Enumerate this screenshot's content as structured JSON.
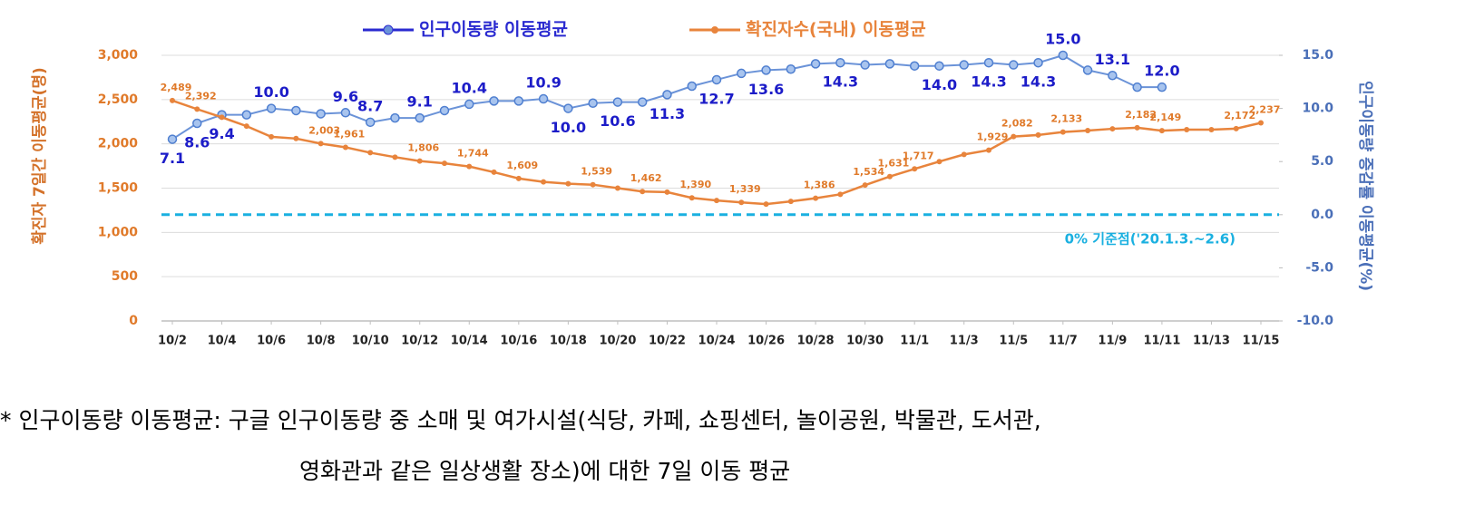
{
  "chart_data": {
    "type": "line",
    "legend": "top",
    "grid": true,
    "categories": [
      "10/2",
      null,
      "10/4",
      null,
      "10/6",
      null,
      "10/8",
      null,
      "10/10",
      null,
      "10/12",
      null,
      "10/14",
      null,
      "10/16",
      null,
      "10/18",
      null,
      "10/20",
      null,
      "10/22",
      null,
      "10/24",
      null,
      "10/26",
      null,
      "10/28",
      null,
      "10/30",
      null,
      "11/1",
      null,
      "11/3",
      null,
      "11/5",
      null,
      "11/7",
      null,
      "11/9",
      null,
      "11/11",
      null,
      "11/13",
      null,
      "11/15"
    ],
    "ylabel": "확진자 7일간 이동평균(명)",
    "y2label": "인구이동량 증감률 이동평균(%)",
    "ylim": [
      0,
      3000
    ],
    "yticks": [
      0,
      500,
      {
        "value": 1000,
        "label": "1,000"
      },
      {
        "value": 1500,
        "label": "1,500"
      },
      {
        "value": 2000,
        "label": "2,000"
      },
      {
        "value": 2500,
        "label": "2,500"
      },
      {
        "value": 3000,
        "label": "3,000"
      }
    ],
    "y2lim": [
      -10,
      15
    ],
    "y2ticks": [
      {
        "value": -10,
        "label": "-10.0"
      },
      {
        "value": -5,
        "label": "-5.0"
      },
      {
        "value": 0,
        "label": "0.0"
      },
      {
        "value": 5,
        "label": "5.0"
      },
      {
        "value": 10,
        "label": "10.0"
      },
      {
        "value": 15,
        "label": "15.0"
      }
    ],
    "reference_line": {
      "value": 0,
      "axis": "y2",
      "color": "#1ab0e0",
      "label": "0% 기준점('20.1.3.~2.6)"
    },
    "series": [
      {
        "name": "인구이동량 이동평균",
        "color": "#6b93d8",
        "label_color": "#1c1cc8",
        "axis": "y2",
        "values": [
          7.1,
          8.6,
          9.4,
          9.4,
          10.0,
          9.8,
          9.5,
          9.6,
          8.7,
          9.1,
          9.1,
          9.8,
          10.4,
          10.7,
          10.7,
          10.9,
          10.0,
          10.5,
          10.6,
          10.6,
          11.3,
          12.1,
          12.7,
          13.3,
          13.6,
          13.7,
          14.2,
          14.3,
          14.1,
          14.2,
          14.0,
          14.0,
          14.1,
          14.3,
          14.1,
          14.3,
          15.0,
          13.6,
          13.1,
          12.0,
          12.0,
          null,
          null,
          null,
          null
        ],
        "value_labels": [
          "7.1",
          "8.6",
          "9.4",
          null,
          "10.0",
          null,
          null,
          "9.6",
          "8.7",
          null,
          "9.1",
          null,
          "10.4",
          null,
          null,
          "10.9",
          "10.0",
          null,
          "10.6",
          null,
          "11.3",
          null,
          "12.7",
          null,
          "13.6",
          null,
          null,
          "14.3",
          null,
          null,
          null,
          "14.0",
          null,
          "14.3",
          null,
          "14.3",
          "15.0",
          null,
          "13.1",
          null,
          "12.0",
          null,
          null,
          null,
          null
        ]
      },
      {
        "name": "확진자수(국내) 이동평균",
        "color": "#e8843c",
        "label_color": "#e07a2a",
        "axis": "y",
        "values": [
          2489,
          2392,
          2300,
          2200,
          2080,
          2060,
          2003,
          1961,
          1900,
          1850,
          1806,
          1780,
          1744,
          1680,
          1609,
          1570,
          1550,
          1539,
          1500,
          1462,
          1455,
          1390,
          1360,
          1339,
          1320,
          1350,
          1386,
          1430,
          1534,
          1631,
          1717,
          1800,
          1880,
          1929,
          2082,
          2100,
          2133,
          2150,
          2170,
          2182,
          2149,
          2160,
          2160,
          2172,
          2237
        ],
        "value_labels": [
          "2,489",
          "2,392",
          null,
          null,
          null,
          null,
          "2,003",
          "1,961",
          null,
          null,
          "1,806",
          null,
          "1,744",
          null,
          "1,609",
          null,
          null,
          "1,539",
          null,
          "1,462",
          null,
          "1,390",
          null,
          "1,339",
          null,
          null,
          "1,386",
          null,
          "1,534",
          "1,631",
          "1,717",
          null,
          null,
          "1,929",
          "2,082",
          null,
          "2,133",
          null,
          null,
          "2,182",
          "2,149",
          null,
          null,
          "2,172",
          "2,237"
        ]
      }
    ]
  },
  "footnote": [
    "* 인구이동량 이동평균: 구글 인구이동량 중 소매 및 여가시설(식당, 카페, 쇼핑센터, 놀이공원, 박물관, 도서관,",
    "영화관과 같은 일상생활 장소)에 대한 7일 이동 평균"
  ]
}
